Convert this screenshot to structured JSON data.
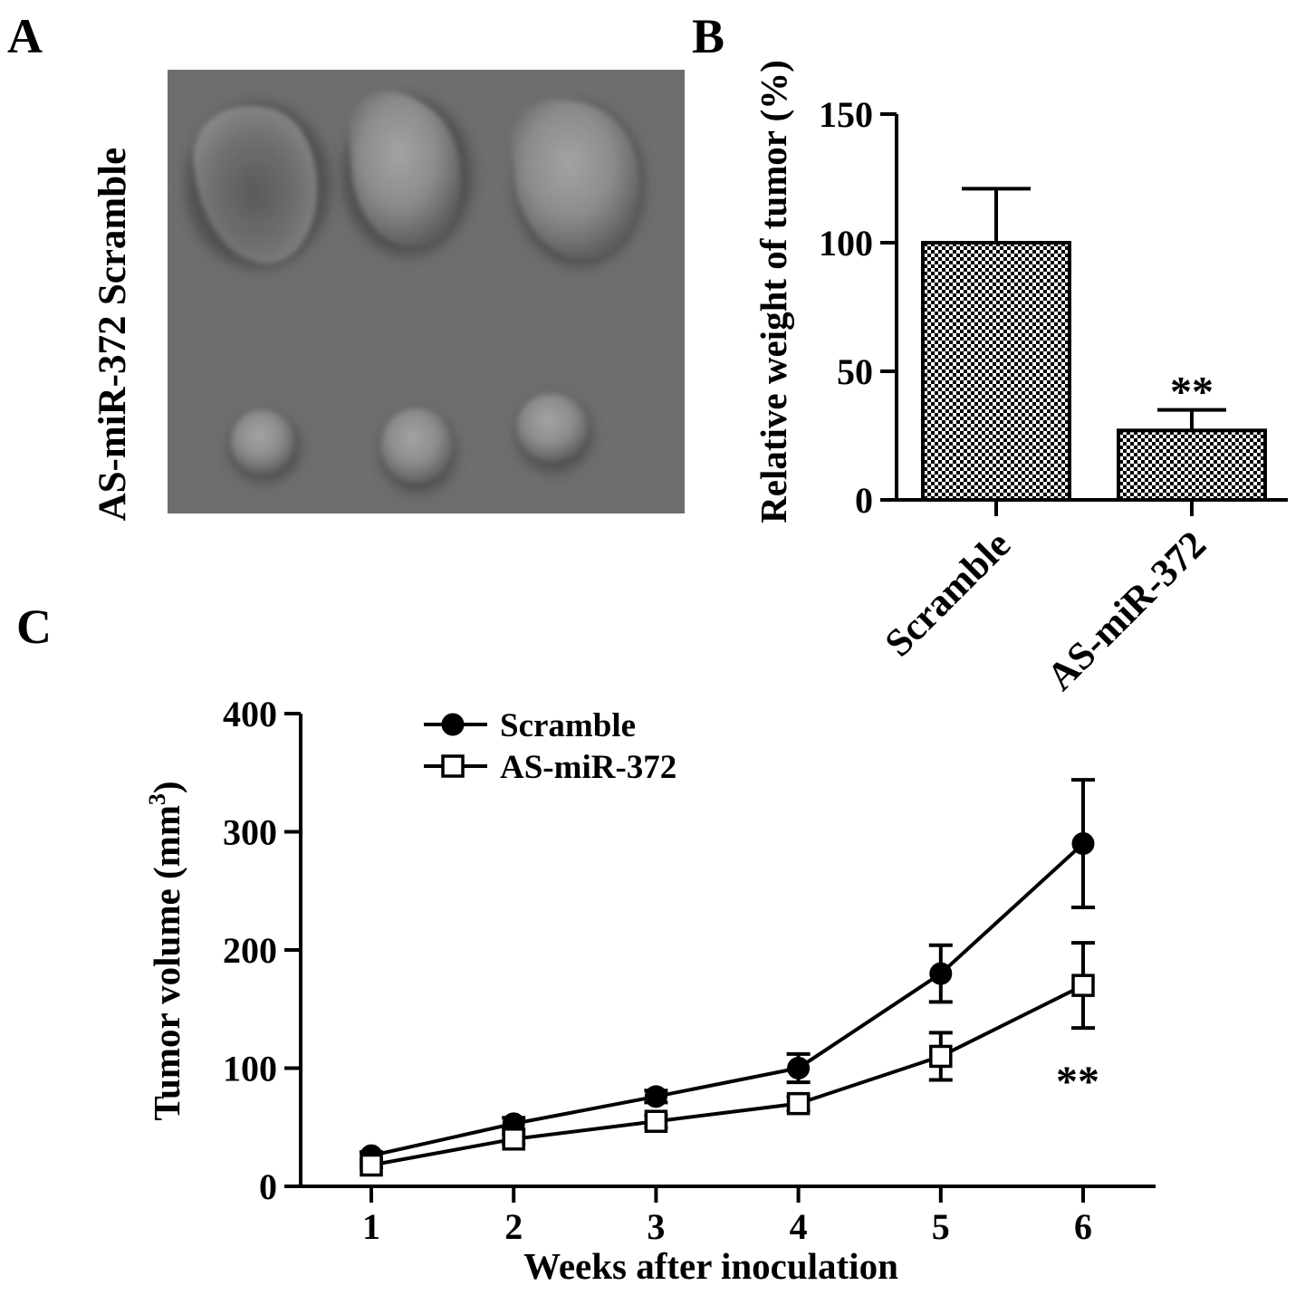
{
  "panels": {
    "a": "A",
    "b": "B",
    "c": "C"
  },
  "photo": {
    "row_labels": [
      "Scramble",
      "AS-miR-372"
    ]
  },
  "chart_data": [
    {
      "type": "bar",
      "categories": [
        "Scramble",
        "AS-miR-372"
      ],
      "values": [
        100,
        27
      ],
      "errors": [
        21,
        8
      ],
      "title": "",
      "xlabel": "",
      "ylabel": "Relative weight of tumor (%)",
      "ylim": [
        0,
        150
      ],
      "yticks": [
        0,
        50,
        100,
        150
      ],
      "annotations": [
        {
          "category": "AS-miR-372",
          "text": "**"
        }
      ],
      "fill_pattern": "checkered"
    },
    {
      "type": "line",
      "x": [
        1,
        2,
        3,
        4,
        5,
        6
      ],
      "series": [
        {
          "name": "Scramble",
          "values": [
            26,
            53,
            76,
            100,
            180,
            290
          ],
          "errors": [
            3,
            5,
            5,
            12,
            24,
            54
          ],
          "marker": "filled-circle"
        },
        {
          "name": "AS-miR-372",
          "values": [
            18,
            40,
            55,
            70,
            110,
            170
          ],
          "errors": [
            2,
            4,
            5,
            6,
            20,
            36
          ],
          "marker": "open-square"
        }
      ],
      "title": "",
      "xlabel": "Weeks after inoculation",
      "ylabel": "Tumor volume (mm",
      "ylabel_superscript": "3",
      "ylabel_close": ")",
      "xlim": [
        1,
        6
      ],
      "xticks": [
        1,
        2,
        3,
        4,
        5,
        6
      ],
      "ylim": [
        0,
        400
      ],
      "yticks": [
        0,
        100,
        200,
        300,
        400
      ],
      "legend_position": "top-left",
      "annotations": [
        {
          "x": 6,
          "text": "**"
        }
      ]
    }
  ]
}
